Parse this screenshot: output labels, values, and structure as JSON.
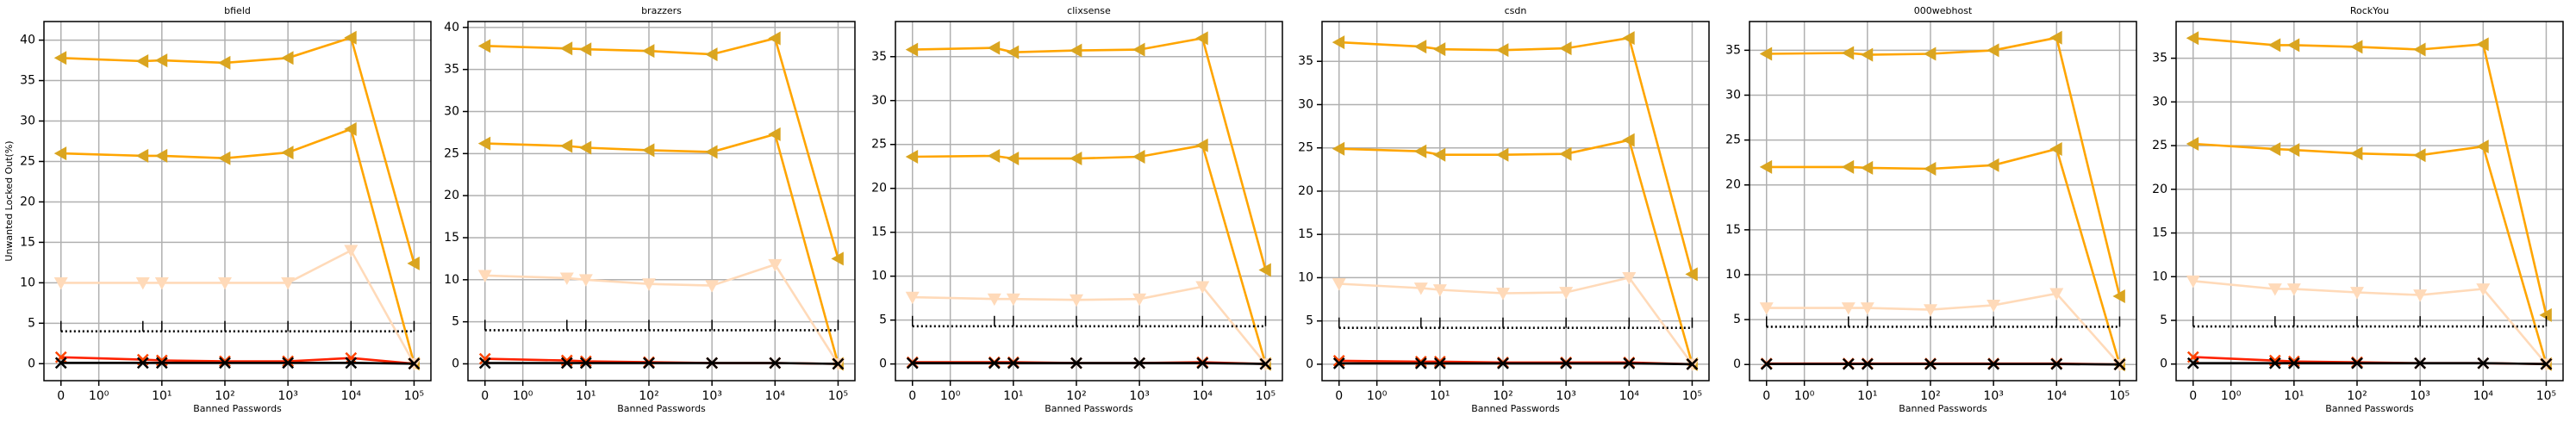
{
  "chart_data": [
    {
      "type": "line",
      "title": "bfield",
      "xlabel": "Banned Passwords",
      "ylabel": "Unwanted Locked Out(%)",
      "xscale": "symlog",
      "linthresh": 1,
      "x": [
        0,
        5,
        10,
        100,
        1000,
        10000,
        100000
      ],
      "xlim": [
        -0.45,
        185000
      ],
      "xticks": [
        0,
        {
          "value": 1,
          "label": "10⁰"
        },
        {
          "value": 10,
          "label": "10¹"
        },
        {
          "value": 100,
          "label": "10²"
        },
        {
          "value": 1000,
          "label": "10³"
        },
        {
          "value": 10000,
          "label": "10⁴"
        },
        {
          "value": 100000,
          "label": "10⁵"
        }
      ],
      "ylim": [
        -2.1,
        42.3
      ],
      "yticks": [
        0,
        5,
        10,
        15,
        20,
        25,
        30,
        35,
        40
      ],
      "grid": true,
      "series": [
        {
          "color": "#ffa500",
          "marker_color": "#daa520",
          "marker": "<",
          "linestyle": "solid",
          "values": [
            37.8,
            37.4,
            37.5,
            37.2,
            37.8,
            40.3,
            12.4
          ]
        },
        {
          "color": "#ffa500",
          "marker_color": "#daa520",
          "marker": "<",
          "linestyle": "solid",
          "values": [
            26.0,
            25.7,
            25.7,
            25.4,
            26.1,
            29.0,
            0
          ]
        },
        {
          "color": "#ffdab9",
          "marker_color": "#ffdab9",
          "marker": "v",
          "linestyle": "solid",
          "values": [
            10.0,
            10.0,
            10.0,
            10.0,
            10.0,
            14.0,
            0
          ]
        },
        {
          "color": "#000000",
          "marker_color": "#000000",
          "marker": "|",
          "linestyle": "dotted",
          "values": [
            4.0,
            4.0,
            4.0,
            4.0,
            4.0,
            4.0,
            4.0
          ]
        },
        {
          "color": "#ff2200",
          "marker_color": "#ff4500",
          "marker": "x",
          "linestyle": "solid",
          "values": [
            0.8,
            0.5,
            0.4,
            0.3,
            0.3,
            0.7,
            0
          ]
        },
        {
          "color": "#000000",
          "marker_color": "#000000",
          "marker": "x",
          "linestyle": "solid",
          "values": [
            0.1,
            0.1,
            0.1,
            0.1,
            0.1,
            0.1,
            0
          ]
        }
      ]
    },
    {
      "type": "line",
      "title": "brazzers",
      "xlabel": "Banned Passwords",
      "xscale": "symlog",
      "linthresh": 1,
      "x": [
        0,
        5,
        10,
        100,
        1000,
        10000,
        100000
      ],
      "xlim": [
        -0.45,
        185000
      ],
      "xticks": [
        0,
        {
          "value": 1,
          "label": "10⁰"
        },
        {
          "value": 10,
          "label": "10¹"
        },
        {
          "value": 100,
          "label": "10²"
        },
        {
          "value": 1000,
          "label": "10³"
        },
        {
          "value": 10000,
          "label": "10⁴"
        },
        {
          "value": 100000,
          "label": "10⁵"
        }
      ],
      "ylim": [
        -2.0,
        40.7
      ],
      "yticks": [
        0,
        5,
        10,
        15,
        20,
        25,
        30,
        35,
        40
      ],
      "grid": true,
      "series": [
        {
          "color": "#ffa500",
          "marker_color": "#daa520",
          "marker": "<",
          "linestyle": "solid",
          "values": [
            37.8,
            37.5,
            37.4,
            37.2,
            36.8,
            38.7,
            12.5
          ]
        },
        {
          "color": "#ffa500",
          "marker_color": "#daa520",
          "marker": "<",
          "linestyle": "solid",
          "values": [
            26.2,
            25.9,
            25.7,
            25.4,
            25.2,
            27.3,
            0
          ]
        },
        {
          "color": "#ffdab9",
          "marker_color": "#ffdab9",
          "marker": "v",
          "linestyle": "solid",
          "values": [
            10.5,
            10.2,
            10.0,
            9.5,
            9.3,
            11.8,
            0
          ]
        },
        {
          "color": "#000000",
          "marker_color": "#000000",
          "marker": "|",
          "linestyle": "dotted",
          "values": [
            4.0,
            4.0,
            4.0,
            4.0,
            4.0,
            4.0,
            4.0
          ]
        },
        {
          "color": "#ff2200",
          "marker_color": "#ff4500",
          "marker": "x",
          "linestyle": "solid",
          "values": [
            0.6,
            0.4,
            0.3,
            0.2,
            0.1,
            0.1,
            0
          ]
        },
        {
          "color": "#000000",
          "marker_color": "#000000",
          "marker": "x",
          "linestyle": "solid",
          "values": [
            0.1,
            0.1,
            0.1,
            0.1,
            0.1,
            0.1,
            0
          ]
        }
      ]
    },
    {
      "type": "line",
      "title": "clixsense",
      "xlabel": "Banned Passwords",
      "xscale": "symlog",
      "linthresh": 1,
      "x": [
        0,
        5,
        10,
        100,
        1000,
        10000,
        100000
      ],
      "xlim": [
        -0.45,
        185000
      ],
      "xticks": [
        0,
        {
          "value": 1,
          "label": "10⁰"
        },
        {
          "value": 10,
          "label": "10¹"
        },
        {
          "value": 100,
          "label": "10²"
        },
        {
          "value": 1000,
          "label": "10³"
        },
        {
          "value": 10000,
          "label": "10⁴"
        },
        {
          "value": 100000,
          "label": "10⁵"
        }
      ],
      "ylim": [
        -1.9,
        39.0
      ],
      "yticks": [
        0,
        5,
        10,
        15,
        20,
        25,
        30,
        35
      ],
      "grid": true,
      "series": [
        {
          "color": "#ffa500",
          "marker_color": "#daa520",
          "marker": "<",
          "linestyle": "solid",
          "values": [
            35.8,
            36.0,
            35.5,
            35.7,
            35.8,
            37.1,
            10.7
          ]
        },
        {
          "color": "#ffa500",
          "marker_color": "#daa520",
          "marker": "<",
          "linestyle": "solid",
          "values": [
            23.6,
            23.7,
            23.4,
            23.4,
            23.6,
            24.9,
            0
          ]
        },
        {
          "color": "#ffdab9",
          "marker_color": "#ffdab9",
          "marker": "v",
          "linestyle": "solid",
          "values": [
            7.6,
            7.4,
            7.4,
            7.3,
            7.4,
            8.8,
            0
          ]
        },
        {
          "color": "#000000",
          "marker_color": "#000000",
          "marker": "|",
          "linestyle": "dotted",
          "values": [
            4.3,
            4.3,
            4.3,
            4.3,
            4.3,
            4.3,
            4.3
          ]
        },
        {
          "color": "#ff2200",
          "marker_color": "#ff4500",
          "marker": "x",
          "linestyle": "solid",
          "values": [
            0.2,
            0.2,
            0.2,
            0.1,
            0.1,
            0.2,
            0
          ]
        },
        {
          "color": "#000000",
          "marker_color": "#000000",
          "marker": "x",
          "linestyle": "solid",
          "values": [
            0.1,
            0.1,
            0.1,
            0.1,
            0.1,
            0.1,
            0
          ]
        }
      ]
    },
    {
      "type": "line",
      "title": "csdn",
      "xlabel": "Banned Passwords",
      "xscale": "symlog",
      "linthresh": 1,
      "x": [
        0,
        5,
        10,
        100,
        1000,
        10000,
        100000
      ],
      "xlim": [
        -0.45,
        185000
      ],
      "xticks": [
        0,
        {
          "value": 1,
          "label": "10⁰"
        },
        {
          "value": 10,
          "label": "10¹"
        },
        {
          "value": 100,
          "label": "10²"
        },
        {
          "value": 1000,
          "label": "10³"
        },
        {
          "value": 10000,
          "label": "10⁴"
        },
        {
          "value": 100000,
          "label": "10⁵"
        }
      ],
      "ylim": [
        -1.9,
        39.6
      ],
      "yticks": [
        0,
        5,
        10,
        15,
        20,
        25,
        30,
        35
      ],
      "grid": true,
      "series": [
        {
          "color": "#ffa500",
          "marker_color": "#daa520",
          "marker": "<",
          "linestyle": "solid",
          "values": [
            37.2,
            36.7,
            36.4,
            36.3,
            36.5,
            37.7,
            10.4
          ]
        },
        {
          "color": "#ffa500",
          "marker_color": "#daa520",
          "marker": "<",
          "linestyle": "solid",
          "values": [
            24.9,
            24.6,
            24.2,
            24.2,
            24.3,
            25.9,
            0
          ]
        },
        {
          "color": "#ffdab9",
          "marker_color": "#ffdab9",
          "marker": "v",
          "linestyle": "solid",
          "values": [
            9.3,
            8.8,
            8.6,
            8.2,
            8.3,
            10.0,
            0
          ]
        },
        {
          "color": "#000000",
          "marker_color": "#000000",
          "marker": "|",
          "linestyle": "dotted",
          "values": [
            4.2,
            4.2,
            4.2,
            4.2,
            4.2,
            4.2,
            4.2
          ]
        },
        {
          "color": "#ff2200",
          "marker_color": "#ff4500",
          "marker": "x",
          "linestyle": "solid",
          "values": [
            0.4,
            0.3,
            0.3,
            0.2,
            0.2,
            0.2,
            0
          ]
        },
        {
          "color": "#000000",
          "marker_color": "#000000",
          "marker": "x",
          "linestyle": "solid",
          "values": [
            0.1,
            0.1,
            0.1,
            0.1,
            0.1,
            0.1,
            0
          ]
        }
      ]
    },
    {
      "type": "line",
      "title": "000webhost",
      "xlabel": "Banned Passwords",
      "xscale": "symlog",
      "linthresh": 1,
      "x": [
        0,
        5,
        10,
        100,
        1000,
        10000,
        100000
      ],
      "xlim": [
        -0.45,
        185000
      ],
      "xticks": [
        0,
        {
          "value": 1,
          "label": "10⁰"
        },
        {
          "value": 10,
          "label": "10¹"
        },
        {
          "value": 100,
          "label": "10²"
        },
        {
          "value": 1000,
          "label": "10³"
        },
        {
          "value": 10000,
          "label": "10⁴"
        },
        {
          "value": 100000,
          "label": "10⁵"
        }
      ],
      "ylim": [
        -1.8,
        38.2
      ],
      "yticks": [
        0,
        5,
        10,
        15,
        20,
        25,
        30,
        35
      ],
      "grid": true,
      "series": [
        {
          "color": "#ffa500",
          "marker_color": "#daa520",
          "marker": "<",
          "linestyle": "solid",
          "values": [
            34.6,
            34.7,
            34.5,
            34.6,
            35.0,
            36.4,
            7.6
          ]
        },
        {
          "color": "#ffa500",
          "marker_color": "#daa520",
          "marker": "<",
          "linestyle": "solid",
          "values": [
            22.0,
            22.0,
            21.9,
            21.8,
            22.2,
            24.0,
            0
          ]
        },
        {
          "color": "#ffdab9",
          "marker_color": "#ffdab9",
          "marker": "v",
          "linestyle": "solid",
          "values": [
            6.3,
            6.3,
            6.3,
            6.1,
            6.6,
            7.9,
            0
          ]
        },
        {
          "color": "#000000",
          "marker_color": "#000000",
          "marker": "|",
          "linestyle": "dotted",
          "values": [
            4.2,
            4.2,
            4.2,
            4.2,
            4.2,
            4.2,
            4.2
          ]
        },
        {
          "color": "#ff2200",
          "marker_color": "#ff4500",
          "marker": "x",
          "linestyle": "solid",
          "values": [
            0.1,
            0.1,
            0.1,
            0.1,
            0.1,
            0.1,
            0
          ]
        },
        {
          "color": "#000000",
          "marker_color": "#000000",
          "marker": "x",
          "linestyle": "solid",
          "values": [
            0.05,
            0.05,
            0.05,
            0.05,
            0.05,
            0.05,
            0
          ]
        }
      ]
    },
    {
      "type": "line",
      "title": "RockYou",
      "xlabel": "Banned Passwords",
      "xscale": "symlog",
      "linthresh": 1,
      "x": [
        0,
        5,
        10,
        100,
        1000,
        10000,
        100000
      ],
      "xlim": [
        -0.45,
        185000
      ],
      "xticks": [
        0,
        {
          "value": 1,
          "label": "10⁰"
        },
        {
          "value": 10,
          "label": "10¹"
        },
        {
          "value": 100,
          "label": "10²"
        },
        {
          "value": 1000,
          "label": "10³"
        },
        {
          "value": 10000,
          "label": "10⁴"
        },
        {
          "value": 100000,
          "label": "10⁵"
        }
      ],
      "ylim": [
        -1.9,
        39.2
      ],
      "yticks": [
        0,
        5,
        10,
        15,
        20,
        25,
        30,
        35
      ],
      "grid": true,
      "series": [
        {
          "color": "#ffa500",
          "marker_color": "#daa520",
          "marker": "<",
          "linestyle": "solid",
          "values": [
            37.3,
            36.5,
            36.5,
            36.3,
            36.0,
            36.6,
            5.6
          ]
        },
        {
          "color": "#ffa500",
          "marker_color": "#daa520",
          "marker": "<",
          "linestyle": "solid",
          "values": [
            25.2,
            24.6,
            24.5,
            24.1,
            23.9,
            24.9,
            0
          ]
        },
        {
          "color": "#ffdab9",
          "marker_color": "#ffdab9",
          "marker": "v",
          "linestyle": "solid",
          "values": [
            9.5,
            8.6,
            8.6,
            8.2,
            7.9,
            8.6,
            0
          ]
        },
        {
          "color": "#000000",
          "marker_color": "#000000",
          "marker": "|",
          "linestyle": "dotted",
          "values": [
            4.3,
            4.3,
            4.3,
            4.3,
            4.3,
            4.3,
            4.3
          ]
        },
        {
          "color": "#ff2200",
          "marker_color": "#ff4500",
          "marker": "x",
          "linestyle": "solid",
          "values": [
            0.8,
            0.4,
            0.3,
            0.2,
            0.1,
            0.1,
            0
          ]
        },
        {
          "color": "#000000",
          "marker_color": "#000000",
          "marker": "x",
          "linestyle": "solid",
          "values": [
            0.1,
            0.1,
            0.1,
            0.1,
            0.1,
            0.1,
            0
          ]
        }
      ]
    }
  ]
}
